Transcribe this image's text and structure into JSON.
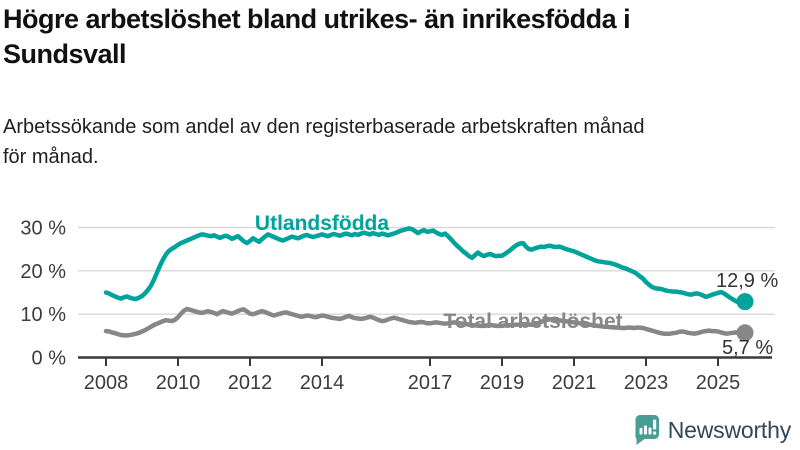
{
  "header": {
    "title": "Högre arbetslöshet bland utrikes- än inrikesfödda i\nSundsvall",
    "subtitle": "Arbetssökande som andel av den registerbaserade arbetskraften månad\nför månad."
  },
  "footer": {
    "brand": "Newsworthy"
  },
  "colors": {
    "teal": "#00a39b",
    "gray": "#878787",
    "axis": "#3a3a3a",
    "grid": "#d9d9d9",
    "tick_label": "#3c3c3c",
    "value_label": "#333333",
    "logo_teal": "#4a9d94",
    "logo_text": "#33475b"
  },
  "chart_data": {
    "type": "line",
    "title": "Högre arbetslöshet bland utrikes- än inrikesfödda i Sundsvall",
    "subtitle": "Arbetssökande som andel av den registerbaserade arbetskraften månad för månad.",
    "x_start_year": 2008,
    "months_per_point": 1,
    "x_ticks": [
      {
        "year": 2008,
        "label": "2008"
      },
      {
        "year": 2010,
        "label": "2010"
      },
      {
        "year": 2012,
        "label": "2012"
      },
      {
        "year": 2014,
        "label": "2014"
      },
      {
        "year": 2017,
        "label": "2017"
      },
      {
        "year": 2019,
        "label": "2019"
      },
      {
        "year": 2021,
        "label": "2021"
      },
      {
        "year": 2023,
        "label": "2023"
      },
      {
        "year": 2025,
        "label": "2025"
      }
    ],
    "y_ticks": [
      {
        "value": 0,
        "label": "0 %"
      },
      {
        "value": 10,
        "label": "10 %"
      },
      {
        "value": 20,
        "label": "20 %"
      },
      {
        "value": 30,
        "label": "30 %"
      }
    ],
    "ylim": [
      0,
      33
    ],
    "grid": "horizontal",
    "series": [
      {
        "name": "Utlandsfödda",
        "color": "#00a39b",
        "end_label": "12,9 %",
        "end_value": 12.9,
        "values": [
          15.0,
          14.8,
          14.4,
          14.1,
          13.8,
          13.6,
          13.9,
          14.1,
          13.8,
          13.6,
          13.5,
          13.8,
          14.2,
          14.8,
          15.6,
          16.6,
          18.0,
          19.6,
          21.2,
          22.6,
          23.8,
          24.6,
          25.1,
          25.5,
          26.0,
          26.4,
          26.7,
          27.0,
          27.3,
          27.6,
          27.9,
          28.2,
          28.4,
          28.3,
          28.1,
          28.0,
          28.2,
          27.9,
          27.6,
          27.9,
          28.1,
          27.8,
          27.4,
          27.7,
          28.0,
          27.4,
          26.8,
          26.4,
          26.9,
          27.5,
          27.1,
          26.7,
          27.3,
          27.9,
          28.4,
          28.1,
          27.8,
          27.5,
          27.2,
          27.0,
          27.3,
          27.6,
          27.9,
          27.7,
          27.5,
          27.8,
          28.1,
          28.3,
          28.0,
          27.8,
          28.0,
          28.2,
          28.4,
          28.2,
          28.0,
          28.3,
          28.5,
          28.3,
          28.1,
          28.4,
          28.6,
          28.4,
          28.2,
          28.5,
          28.3,
          28.6,
          28.8,
          28.6,
          28.4,
          28.7,
          28.5,
          28.3,
          28.6,
          28.4,
          28.2,
          28.4,
          28.6,
          28.9,
          29.2,
          29.4,
          29.6,
          29.8,
          29.6,
          29.2,
          28.7,
          29.1,
          29.4,
          29.0,
          29.1,
          29.3,
          28.9,
          28.5,
          28.3,
          28.6,
          28.0,
          27.3,
          26.5,
          25.8,
          25.2,
          24.5,
          24.0,
          23.4,
          23.0,
          23.6,
          24.2,
          23.7,
          23.4,
          23.7,
          23.9,
          23.6,
          23.4,
          23.5,
          23.5,
          23.9,
          24.4,
          24.9,
          25.5,
          26.0,
          26.3,
          26.4,
          25.6,
          25.0,
          24.9,
          25.2,
          25.4,
          25.6,
          25.5,
          25.7,
          25.8,
          25.6,
          25.5,
          25.6,
          25.4,
          25.1,
          24.9,
          24.7,
          24.5,
          24.2,
          23.9,
          23.6,
          23.3,
          23.0,
          22.7,
          22.4,
          22.2,
          22.1,
          22.0,
          21.9,
          21.8,
          21.6,
          21.4,
          21.1,
          20.8,
          20.6,
          20.3,
          20.0,
          19.7,
          19.3,
          18.7,
          18.2,
          17.4,
          16.8,
          16.3,
          16.0,
          15.9,
          15.8,
          15.6,
          15.4,
          15.3,
          15.2,
          15.2,
          15.1,
          15.0,
          14.8,
          14.6,
          14.5,
          14.7,
          14.8,
          14.6,
          14.3,
          14.0,
          14.2,
          14.5,
          14.7,
          14.9,
          15.1,
          14.8,
          14.3,
          13.8,
          13.4,
          13.0,
          12.7,
          12.6,
          12.9
        ]
      },
      {
        "name": "Total arbetslöshet",
        "color": "#878787",
        "end_label": "5,7 %",
        "end_value": 5.7,
        "values": [
          6.1,
          6.0,
          5.8,
          5.6,
          5.4,
          5.2,
          5.1,
          5.1,
          5.2,
          5.3,
          5.5,
          5.7,
          6.0,
          6.3,
          6.7,
          7.1,
          7.5,
          7.8,
          8.1,
          8.4,
          8.6,
          8.5,
          8.4,
          8.7,
          9.3,
          10.1,
          10.8,
          11.2,
          11.0,
          10.8,
          10.6,
          10.4,
          10.3,
          10.5,
          10.7,
          10.5,
          10.3,
          10.0,
          10.4,
          10.7,
          10.5,
          10.3,
          10.1,
          10.4,
          10.7,
          11.0,
          11.1,
          10.6,
          10.1,
          10.0,
          10.2,
          10.5,
          10.7,
          10.5,
          10.2,
          9.9,
          9.7,
          9.9,
          10.1,
          10.3,
          10.4,
          10.2,
          10.0,
          9.8,
          9.6,
          9.4,
          9.5,
          9.7,
          9.6,
          9.4,
          9.3,
          9.5,
          9.7,
          9.6,
          9.4,
          9.2,
          9.1,
          9.0,
          8.9,
          9.1,
          9.4,
          9.6,
          9.3,
          9.1,
          9.0,
          8.9,
          9.0,
          9.2,
          9.4,
          9.2,
          8.9,
          8.6,
          8.4,
          8.5,
          8.8,
          9.0,
          9.2,
          9.0,
          8.8,
          8.6,
          8.4,
          8.2,
          8.1,
          8.0,
          8.1,
          8.2,
          8.1,
          7.9,
          7.9,
          8.0,
          8.1,
          8.0,
          7.9,
          7.8,
          7.9,
          8.0,
          8.1,
          8.0,
          7.9,
          7.8,
          7.7,
          7.6,
          7.5,
          7.4,
          7.4,
          7.3,
          7.3,
          7.4,
          7.5,
          7.4,
          7.3,
          7.3,
          7.3,
          7.4,
          7.4,
          7.5,
          7.5,
          7.6,
          7.6,
          7.7,
          7.7,
          7.6,
          7.6,
          7.7,
          7.9,
          8.2,
          8.5,
          8.7,
          8.8,
          8.8,
          8.7,
          8.6,
          8.5,
          8.4,
          8.3,
          8.2,
          8.1,
          8.0,
          7.9,
          7.8,
          7.7,
          7.6,
          7.5,
          7.4,
          7.3,
          7.2,
          7.1,
          7.1,
          7.0,
          7.0,
          6.9,
          6.9,
          6.8,
          6.8,
          6.9,
          6.9,
          6.8,
          6.9,
          6.9,
          6.8,
          6.6,
          6.4,
          6.2,
          6.0,
          5.8,
          5.6,
          5.5,
          5.5,
          5.5,
          5.6,
          5.7,
          5.9,
          6.0,
          5.9,
          5.7,
          5.6,
          5.5,
          5.6,
          5.8,
          6.0,
          6.1,
          6.2,
          6.1,
          6.1,
          6.0,
          5.8,
          5.6,
          5.5,
          5.6,
          5.7,
          5.8,
          5.7,
          5.6,
          5.7
        ]
      }
    ]
  }
}
